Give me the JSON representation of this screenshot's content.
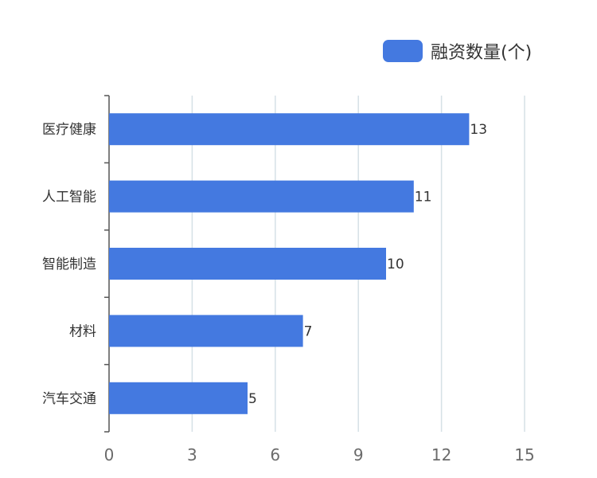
{
  "chart_data": {
    "type": "bar",
    "orientation": "horizontal",
    "categories": [
      "医疗健康",
      "人工智能",
      "智能制造",
      "材料",
      "汽车交通"
    ],
    "series": [
      {
        "name": "融资数量(个)",
        "values": [
          13,
          11,
          10,
          7,
          5
        ],
        "color": "#4479e0"
      }
    ],
    "xlim": [
      0,
      15
    ],
    "xticks": [
      0,
      3,
      6,
      9,
      12,
      15
    ],
    "grid": true,
    "legend": "top-right",
    "data_labels": true
  }
}
